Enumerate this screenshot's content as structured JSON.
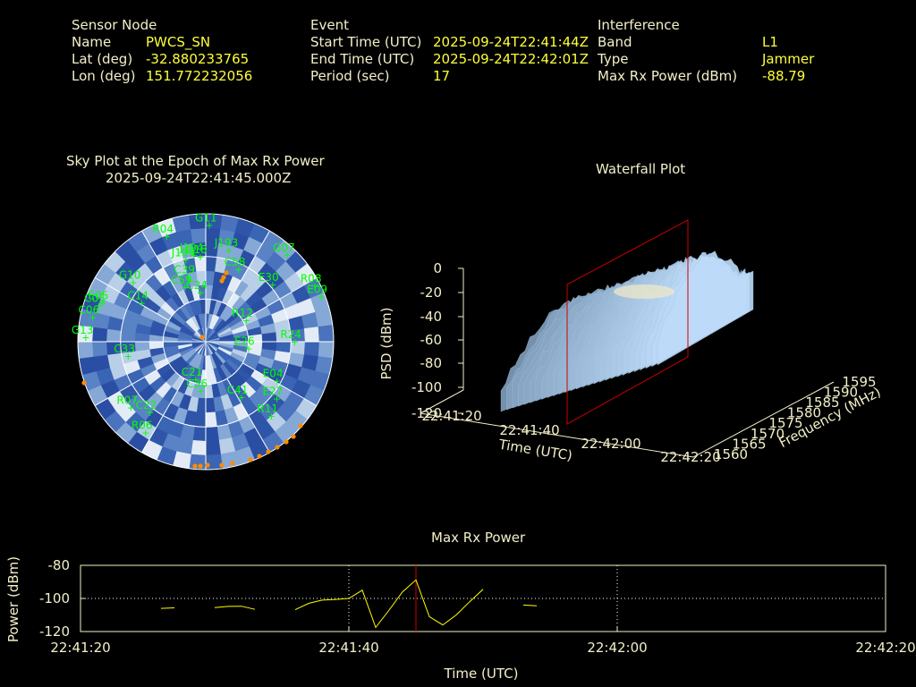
{
  "info": {
    "sensor": {
      "header": "Sensor Node",
      "rows": [
        {
          "label": "Name",
          "value": "PWCS_SN"
        },
        {
          "label": "Lat (deg)",
          "value": "-32.880233765"
        },
        {
          "label": "Lon (deg)",
          "value": "151.772232056"
        }
      ]
    },
    "event": {
      "header": "Event",
      "rows": [
        {
          "label": "Start Time (UTC)",
          "value": "2025-09-24T22:41:44Z"
        },
        {
          "label": "End Time (UTC)",
          "value": "2025-09-24T22:42:01Z"
        },
        {
          "label": "Period (sec)",
          "value": "17"
        }
      ]
    },
    "interference": {
      "header": "Interference",
      "rows": [
        {
          "label": "Band",
          "value": "L1"
        },
        {
          "label": "Type",
          "value": "Jammer"
        },
        {
          "label": "Max Rx Power (dBm)",
          "value": "-88.79"
        }
      ]
    }
  },
  "skyplot": {
    "title_line1": "Sky Plot at the Epoch of Max Rx Power",
    "title_line2": "2025-09-24T22:41:45.000Z",
    "satellites": [
      {
        "id": "G11",
        "az": 0,
        "el": 8
      },
      {
        "id": "R04",
        "az": -22,
        "el": 10
      },
      {
        "id": "J194",
        "az": -10,
        "el": 28
      },
      {
        "id": "J199",
        "az": -16,
        "el": 30
      },
      {
        "id": "C18",
        "az": -6,
        "el": 30
      },
      {
        "id": "J193",
        "az": 12,
        "el": 24
      },
      {
        "id": "G07",
        "az": 42,
        "el": 8
      },
      {
        "id": "C39",
        "az": -18,
        "el": 42
      },
      {
        "id": "C58",
        "az": 22,
        "el": 35
      },
      {
        "id": "E30",
        "az": 48,
        "el": 30
      },
      {
        "id": "R08",
        "az": 62,
        "el": 6
      },
      {
        "id": "E09",
        "az": 68,
        "el": 5
      },
      {
        "id": "G10",
        "az": -52,
        "el": 22
      },
      {
        "id": "C59",
        "az": -24,
        "el": 48
      },
      {
        "id": "C24",
        "az": -10,
        "el": 55
      },
      {
        "id": "E05",
        "az": -70,
        "el": 10
      },
      {
        "id": "C03",
        "az": -72,
        "el": 8
      },
      {
        "id": "C06",
        "az": -78,
        "el": 6
      },
      {
        "id": "R12",
        "az": 60,
        "el": 60
      },
      {
        "id": "C14",
        "az": -60,
        "el": 35
      },
      {
        "id": "C33",
        "az": -100,
        "el": 32
      },
      {
        "id": "E26",
        "az": 100,
        "el": 62
      },
      {
        "id": "R24",
        "az": 90,
        "el": 30
      },
      {
        "id": "G13",
        "az": -88,
        "el": 3
      },
      {
        "id": "C21",
        "az": -160,
        "el": 62
      },
      {
        "id": "C36",
        "az": -170,
        "el": 55
      },
      {
        "id": "C41",
        "az": 150,
        "el": 45
      },
      {
        "id": "E04",
        "az": 120,
        "el": 35
      },
      {
        "id": "E27",
        "az": 130,
        "el": 28
      },
      {
        "id": "R11",
        "az": 140,
        "el": 22
      },
      {
        "id": "C22",
        "az": -140,
        "el": 25
      },
      {
        "id": "R07",
        "az": -130,
        "el": 18
      },
      {
        "id": "R06",
        "az": -145,
        "el": 12
      }
    ]
  },
  "waterfall": {
    "title": "Waterfall Plot",
    "zlabel": "PSD (dBm)",
    "xlabel": "Time (UTC)",
    "ylabel": "Frequency (MHz)",
    "z_ticks": [
      "0",
      "-20",
      "-40",
      "-60",
      "-80",
      "-100",
      "-120"
    ],
    "x_ticks": [
      "22:41:20",
      "22:41:40",
      "22:42:00",
      "22:42:20"
    ],
    "y_ticks": [
      "1560",
      "1565",
      "1570",
      "1575",
      "1580",
      "1585",
      "1590",
      "1595"
    ]
  },
  "chart_data": {
    "type": "line",
    "title": "Max Rx Power",
    "xlabel": "Time (UTC)",
    "ylabel": "Power (dBm)",
    "ylim": [
      -120,
      -80
    ],
    "xlim": [
      "22:41:20",
      "22:42:20"
    ],
    "x_tick_labels": [
      "22:41:20",
      "22:41:40",
      "22:42:00",
      "22:42:20"
    ],
    "y_tick_labels": [
      "-80",
      "-100",
      "-120"
    ],
    "grid": true,
    "marker_time": "22:41:45",
    "series": [
      {
        "values": [
          {
            "x": "22:41:26",
            "y": -106.0
          },
          {
            "x": "22:41:27",
            "y": -105.7
          },
          {
            "x": "22:41:30",
            "y": -105.5
          },
          {
            "x": "22:41:31",
            "y": -104.8
          },
          {
            "x": "22:41:32",
            "y": -104.7
          },
          {
            "x": "22:41:33",
            "y": -106.6
          },
          {
            "x": "22:41:36",
            "y": -106.8
          },
          {
            "x": "22:41:37",
            "y": -103.0
          },
          {
            "x": "22:41:38",
            "y": -101.0
          },
          {
            "x": "22:41:39",
            "y": -100.6
          },
          {
            "x": "22:41:40",
            "y": -100.0
          },
          {
            "x": "22:41:41",
            "y": -95.0
          },
          {
            "x": "22:41:42",
            "y": -117.5
          },
          {
            "x": "22:41:43",
            "y": -107.0
          },
          {
            "x": "22:41:44",
            "y": -96.0
          },
          {
            "x": "22:41:45",
            "y": -88.8
          },
          {
            "x": "22:41:46",
            "y": -111.0
          },
          {
            "x": "22:41:47",
            "y": -116.0
          },
          {
            "x": "22:41:48",
            "y": -110.0
          },
          {
            "x": "22:41:49",
            "y": -102.0
          },
          {
            "x": "22:41:50",
            "y": -94.5
          },
          {
            "x": "22:41:53",
            "y": -104.0
          },
          {
            "x": "22:41:54",
            "y": -104.5
          }
        ]
      }
    ]
  },
  "colors": {
    "label": "#f3efc9",
    "value": "#ffff3a",
    "sat": "#00ff00",
    "marker": "#ff8c00",
    "curve": "#ffff00",
    "cursor": "#cc0000",
    "axis": "#f3efc9"
  }
}
